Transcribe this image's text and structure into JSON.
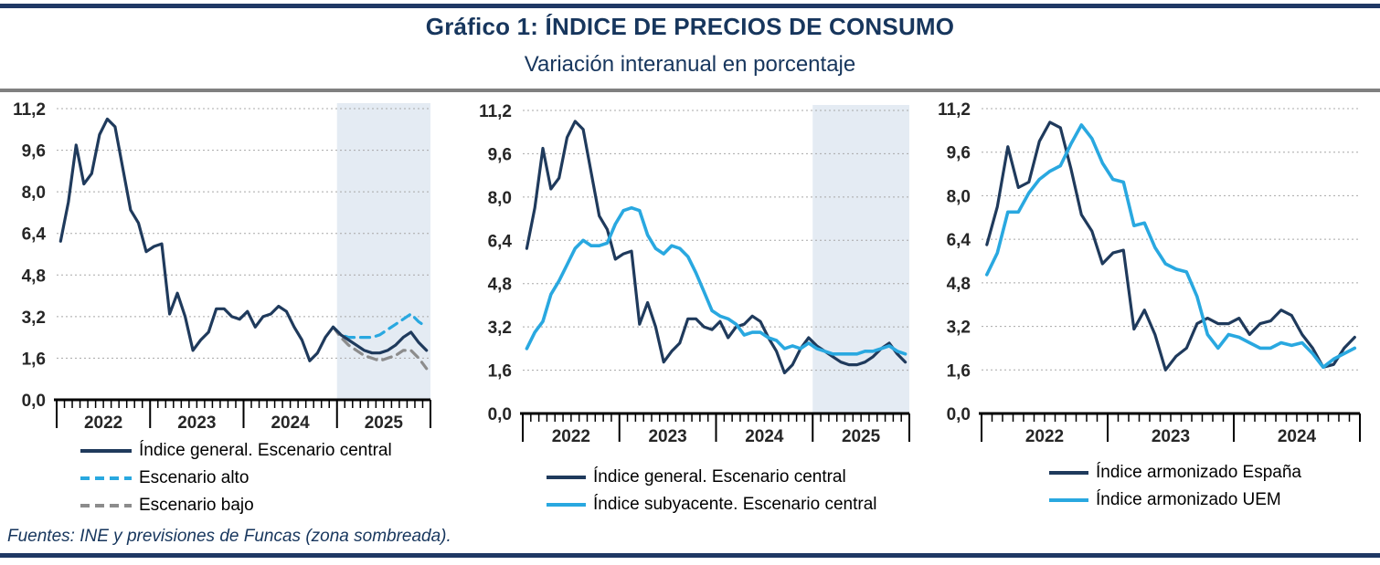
{
  "header": {
    "title": "Gráfico 1: ÍNDICE DE PRECIOS DE CONSUMO",
    "subtitle": "Variación interanual en porcentaje"
  },
  "footer": {
    "source": "Fuentes: INE y previsiones de Funcas (zona sombreada)."
  },
  "colors": {
    "navy": "#1f3a5c",
    "light_blue": "#29a8e0",
    "gray": "#8c8c8c",
    "shade": "#e4ebf3",
    "gridline": "#a8a8a8",
    "axis": "#000000",
    "title_navy": "#17365d",
    "rule_navy": "#1f3864",
    "rule_gray": "#808080"
  },
  "chart_data": [
    {
      "id": "ipc-general-escenarios",
      "type": "line",
      "ylim": [
        0,
        11.2
      ],
      "y_ticks": [
        "0,0",
        "1,6",
        "3,2",
        "4,8",
        "6,4",
        "8,0",
        "9,6",
        "11,2"
      ],
      "years": [
        "2022",
        "2023",
        "2024",
        "2025"
      ],
      "months": 48,
      "grid": true,
      "legend_position": "bottom",
      "shaded_forecast": {
        "start_month_index": 36,
        "covers_year": "2025"
      },
      "series": [
        {
          "name": "Índice general. Escenario central",
          "color": "#1f3a5c",
          "line_style": "solid",
          "draw_order": 2,
          "values": [
            6.1,
            7.6,
            9.8,
            8.3,
            8.7,
            10.2,
            10.8,
            10.5,
            8.9,
            7.3,
            6.8,
            5.7,
            5.9,
            6.0,
            3.3,
            4.1,
            3.2,
            1.9,
            2.3,
            2.6,
            3.5,
            3.5,
            3.2,
            3.1,
            3.4,
            2.8,
            3.2,
            3.3,
            3.6,
            3.4,
            2.8,
            2.3,
            1.5,
            1.8,
            2.4,
            2.8,
            2.5,
            2.3,
            2.1,
            1.9,
            1.8,
            1.8,
            1.9,
            2.1,
            2.4,
            2.6,
            2.2,
            1.9
          ]
        },
        {
          "name": "Escenario alto",
          "color": "#29a8e0",
          "line_style": "dashed",
          "draw_order": 0,
          "values": [
            null,
            null,
            null,
            null,
            null,
            null,
            null,
            null,
            null,
            null,
            null,
            null,
            null,
            null,
            null,
            null,
            null,
            null,
            null,
            null,
            null,
            null,
            null,
            null,
            null,
            null,
            null,
            null,
            null,
            null,
            null,
            null,
            null,
            null,
            null,
            2.8,
            2.5,
            2.4,
            2.4,
            2.4,
            2.4,
            2.5,
            2.7,
            2.9,
            3.1,
            3.3,
            3.0,
            2.8
          ]
        },
        {
          "name": "Escenario bajo",
          "color": "#8c8c8c",
          "line_style": "dashed",
          "draw_order": 1,
          "values": [
            null,
            null,
            null,
            null,
            null,
            null,
            null,
            null,
            null,
            null,
            null,
            null,
            null,
            null,
            null,
            null,
            null,
            null,
            null,
            null,
            null,
            null,
            null,
            null,
            null,
            null,
            null,
            null,
            null,
            null,
            null,
            null,
            null,
            null,
            null,
            2.8,
            2.4,
            2.1,
            1.9,
            1.7,
            1.6,
            1.5,
            1.6,
            1.7,
            1.9,
            1.9,
            1.6,
            1.2
          ]
        }
      ]
    },
    {
      "id": "ipc-general-subyacente",
      "type": "line",
      "ylim": [
        0,
        11.2
      ],
      "y_ticks": [
        "0,0",
        "1,6",
        "3,2",
        "4,8",
        "6,4",
        "8,0",
        "9,6",
        "11,2"
      ],
      "years": [
        "2022",
        "2023",
        "2024",
        "2025"
      ],
      "months": 48,
      "grid": true,
      "legend_position": "bottom",
      "shaded_forecast": {
        "start_month_index": 36,
        "covers_year": "2025"
      },
      "series": [
        {
          "name": "Índice general. Escenario central",
          "color": "#1f3a5c",
          "line_style": "solid",
          "draw_order": 0,
          "values": [
            6.1,
            7.6,
            9.8,
            8.3,
            8.7,
            10.2,
            10.8,
            10.5,
            8.9,
            7.3,
            6.8,
            5.7,
            5.9,
            6.0,
            3.3,
            4.1,
            3.2,
            1.9,
            2.3,
            2.6,
            3.5,
            3.5,
            3.2,
            3.1,
            3.4,
            2.8,
            3.2,
            3.3,
            3.6,
            3.4,
            2.8,
            2.3,
            1.5,
            1.8,
            2.4,
            2.8,
            2.5,
            2.3,
            2.1,
            1.9,
            1.8,
            1.8,
            1.9,
            2.1,
            2.4,
            2.6,
            2.2,
            1.9
          ]
        },
        {
          "name": "Índice subyacente. Escenario central",
          "color": "#29a8e0",
          "line_style": "solid",
          "draw_order": 1,
          "values": [
            2.4,
            3.0,
            3.4,
            4.4,
            4.9,
            5.5,
            6.1,
            6.4,
            6.2,
            6.2,
            6.3,
            7.0,
            7.5,
            7.6,
            7.5,
            6.6,
            6.1,
            5.9,
            6.2,
            6.1,
            5.8,
            5.2,
            4.5,
            3.8,
            3.6,
            3.5,
            3.3,
            2.9,
            3.0,
            3.0,
            2.8,
            2.7,
            2.4,
            2.5,
            2.4,
            2.6,
            2.4,
            2.3,
            2.2,
            2.2,
            2.2,
            2.2,
            2.3,
            2.3,
            2.4,
            2.5,
            2.3,
            2.2
          ]
        }
      ]
    },
    {
      "id": "ipc-armonizado-espana-uem",
      "type": "line",
      "ylim": [
        0,
        11.2
      ],
      "y_ticks": [
        "0,0",
        "1,6",
        "3,2",
        "4,8",
        "6,4",
        "8,0",
        "9,6",
        "11,2"
      ],
      "years": [
        "2022",
        "2023",
        "2024"
      ],
      "months": 36,
      "grid": true,
      "legend_position": "bottom",
      "shaded_forecast": null,
      "series": [
        {
          "name": "Índice armonizado España",
          "color": "#1f3a5c",
          "line_style": "solid",
          "draw_order": 0,
          "values": [
            6.2,
            7.6,
            9.8,
            8.3,
            8.5,
            10.0,
            10.7,
            10.5,
            9.0,
            7.3,
            6.7,
            5.5,
            5.9,
            6.0,
            3.1,
            3.8,
            2.9,
            1.6,
            2.1,
            2.4,
            3.3,
            3.5,
            3.3,
            3.3,
            3.5,
            2.9,
            3.3,
            3.4,
            3.8,
            3.6,
            2.9,
            2.4,
            1.7,
            1.8,
            2.4,
            2.8
          ]
        },
        {
          "name": "Índice armonizado UEM",
          "color": "#29a8e0",
          "line_style": "solid",
          "draw_order": 1,
          "values": [
            5.1,
            5.9,
            7.4,
            7.4,
            8.1,
            8.6,
            8.9,
            9.1,
            9.9,
            10.6,
            10.1,
            9.2,
            8.6,
            8.5,
            6.9,
            7.0,
            6.1,
            5.5,
            5.3,
            5.2,
            4.3,
            2.9,
            2.4,
            2.9,
            2.8,
            2.6,
            2.4,
            2.4,
            2.6,
            2.5,
            2.6,
            2.2,
            1.7,
            2.0,
            2.2,
            2.4
          ]
        }
      ]
    }
  ]
}
